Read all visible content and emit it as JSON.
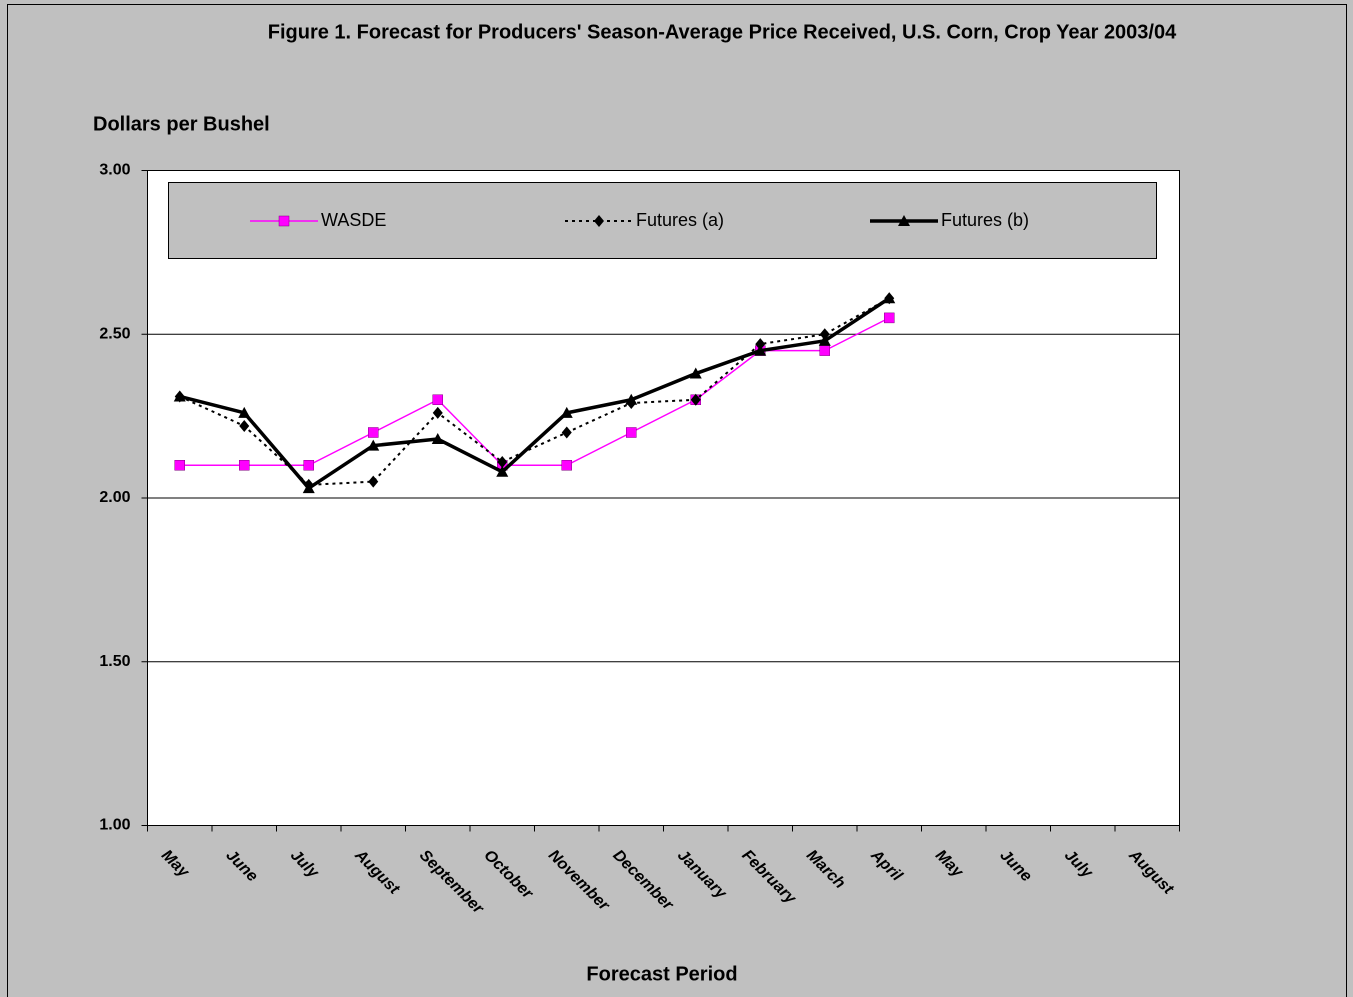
{
  "chart_data": {
    "type": "line",
    "title": "Figure 1.  Forecast for Producers' Season-Average Price Received, U.S. Corn, Crop Year 2003/04",
    "y_label": "Dollars per Bushel",
    "x_label": "Forecast Period",
    "categories": [
      "May",
      "June",
      "July",
      "August",
      "September",
      "October",
      "November",
      "December",
      "January",
      "February",
      "March",
      "April",
      "May",
      "June",
      "July",
      "August"
    ],
    "series": [
      {
        "name": "WASDE",
        "color": "#ff00ff",
        "marker": "square",
        "dash": "solid",
        "width": 1.5,
        "values": [
          2.1,
          2.1,
          2.1,
          2.2,
          2.3,
          2.1,
          2.1,
          2.2,
          2.3,
          2.45,
          2.45,
          2.55,
          null,
          null,
          null,
          null
        ]
      },
      {
        "name": "Futures (a)",
        "color": "#000000",
        "marker": "diamond",
        "dash": "dotted",
        "width": 2,
        "values": [
          2.31,
          2.22,
          2.04,
          2.05,
          2.26,
          2.11,
          2.2,
          2.29,
          2.3,
          2.47,
          2.5,
          2.61,
          null,
          null,
          null,
          null
        ]
      },
      {
        "name": "Futures (b)",
        "color": "#000000",
        "marker": "triangle",
        "dash": "solid",
        "width": 3.5,
        "values": [
          2.31,
          2.26,
          2.03,
          2.16,
          2.18,
          2.08,
          2.26,
          2.3,
          2.38,
          2.45,
          2.48,
          2.61,
          null,
          null,
          null,
          null
        ]
      }
    ],
    "ylim": [
      1.0,
      3.0
    ],
    "yticks": [
      {
        "value": 1,
        "label": "1.00"
      },
      {
        "value": 1.5,
        "label": "1.50"
      },
      {
        "value": 2,
        "label": "2.00"
      },
      {
        "value": 2.5,
        "label": "2.50"
      },
      {
        "value": 3,
        "label": "3.00"
      }
    ],
    "grid": true,
    "legend": "top"
  }
}
